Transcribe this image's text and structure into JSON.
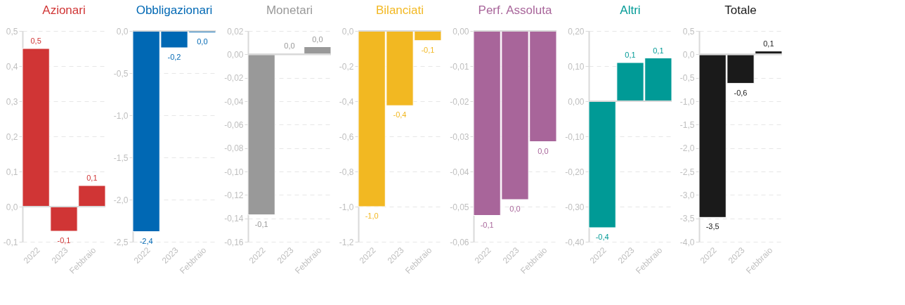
{
  "chart_data": [
    {
      "type": "bar",
      "title": "Azionari",
      "categories": [
        "2022",
        "2023",
        "Febbraio"
      ],
      "values": [
        0.45,
        -0.07,
        0.06
      ],
      "color": "#d03535",
      "value_labels": [
        "0,5",
        "-0,1",
        "0,1"
      ],
      "ylim": [
        -0.1,
        0.5
      ],
      "yticks": [
        {
          "value": -0.1,
          "label": "-0,1"
        },
        {
          "value": 0,
          "label": "0,0"
        },
        {
          "value": 0.1,
          "label": "0,1"
        },
        {
          "value": 0.2,
          "label": "0,2"
        },
        {
          "value": 0.3,
          "label": "0,3"
        },
        {
          "value": 0.4,
          "label": "0,4"
        },
        {
          "value": 0.5,
          "label": "0,5"
        }
      ],
      "grid": "y"
    },
    {
      "type": "bar",
      "title": "Obbligazionari",
      "categories": [
        "2022",
        "2023",
        "Febbraio"
      ],
      "values": [
        -2.38,
        -0.2,
        -0.02
      ],
      "color": "#0068b4",
      "value_labels": [
        "-2,4",
        "-0,2",
        "0,0"
      ],
      "ylim": [
        -2.5,
        0
      ],
      "yticks": [
        {
          "value": -2.5,
          "label": "-2,5"
        },
        {
          "value": -2,
          "label": "-2,0"
        },
        {
          "value": -1.5,
          "label": "-1,5"
        },
        {
          "value": -1,
          "label": "-1,0"
        },
        {
          "value": -0.5,
          "label": "-0,5"
        },
        {
          "value": 0,
          "label": "0,0"
        }
      ],
      "grid": "y"
    },
    {
      "type": "bar",
      "title": "Monetari",
      "categories": [
        "2022",
        "2023",
        "Febbraio"
      ],
      "values": [
        -0.137,
        0.0007,
        0.0065
      ],
      "color": "#999999",
      "value_labels": [
        "-0,1",
        "0,0",
        "0,0"
      ],
      "ylim": [
        -0.16,
        0.02
      ],
      "yticks": [
        {
          "value": -0.16,
          "label": "-0,16"
        },
        {
          "value": -0.14,
          "label": "-0,14"
        },
        {
          "value": -0.12,
          "label": "-0,12"
        },
        {
          "value": -0.1,
          "label": "-0,10"
        },
        {
          "value": -0.08,
          "label": "-0,08"
        },
        {
          "value": -0.06,
          "label": "-0,06"
        },
        {
          "value": -0.04,
          "label": "-0,04"
        },
        {
          "value": -0.02,
          "label": "-0,02"
        },
        {
          "value": 0,
          "label": "0,00"
        },
        {
          "value": 0.02,
          "label": "0,02"
        }
      ],
      "grid": "y"
    },
    {
      "type": "bar",
      "title": "Bilanciati",
      "categories": [
        "2022",
        "2023",
        "Febbraio"
      ],
      "values": [
        -1.0,
        -0.425,
        -0.055
      ],
      "color": "#f2b822",
      "value_labels": [
        "-1,0",
        "-0,4",
        "-0,1"
      ],
      "ylim": [
        -1.2,
        0
      ],
      "yticks": [
        {
          "value": -1.2,
          "label": "-1,2"
        },
        {
          "value": -1,
          "label": "-1,0"
        },
        {
          "value": -0.8,
          "label": "-0,8"
        },
        {
          "value": -0.6,
          "label": "-0,6"
        },
        {
          "value": -0.4,
          "label": "-0,4"
        },
        {
          "value": -0.2,
          "label": "-0,2"
        },
        {
          "value": 0,
          "label": "0,0"
        }
      ],
      "grid": "y"
    },
    {
      "type": "bar",
      "title": "Perf. Assoluta",
      "categories": [
        "2022",
        "2023",
        "Febbraio"
      ],
      "values": [
        -0.0525,
        -0.048,
        -0.0315
      ],
      "color": "#a8659a",
      "value_labels": [
        "-0,1",
        "0,0",
        "0,0"
      ],
      "ylim": [
        -0.06,
        0
      ],
      "yticks": [
        {
          "value": -0.06,
          "label": "-0,06"
        },
        {
          "value": -0.05,
          "label": "-0,05"
        },
        {
          "value": -0.04,
          "label": "-0,04"
        },
        {
          "value": -0.03,
          "label": "-0,03"
        },
        {
          "value": -0.02,
          "label": "-0,02"
        },
        {
          "value": -0.01,
          "label": "-0,01"
        },
        {
          "value": 0,
          "label": "0,00"
        }
      ],
      "grid": "y"
    },
    {
      "type": "bar",
      "title": "Altri",
      "categories": [
        "2022",
        "2023",
        "Febbraio"
      ],
      "values": [
        -0.36,
        0.11,
        0.123
      ],
      "color": "#009a96",
      "value_labels": [
        "-0,4",
        "0,1",
        "0,1"
      ],
      "ylim": [
        -0.4,
        0.2
      ],
      "yticks": [
        {
          "value": -0.4,
          "label": "-0,40"
        },
        {
          "value": -0.3,
          "label": "-0,30"
        },
        {
          "value": -0.2,
          "label": "-0,20"
        },
        {
          "value": -0.1,
          "label": "-0,10"
        },
        {
          "value": 0,
          "label": "0,00"
        },
        {
          "value": 0.1,
          "label": "0,10"
        },
        {
          "value": 0.2,
          "label": "0,20"
        }
      ],
      "grid": "y"
    },
    {
      "type": "bar",
      "title": "Totale",
      "categories": [
        "2022",
        "2023",
        "Febbraio"
      ],
      "values": [
        -3.48,
        -0.62,
        0.07
      ],
      "color": "#1a1a1a",
      "value_labels": [
        "-3,5",
        "-0,6",
        "0,1"
      ],
      "ylim": [
        -4,
        0.5
      ],
      "yticks": [
        {
          "value": -4,
          "label": "-4,0"
        },
        {
          "value": -3.5,
          "label": "-3,5"
        },
        {
          "value": -3,
          "label": "-3,0"
        },
        {
          "value": -2.5,
          "label": "-2,5"
        },
        {
          "value": -2,
          "label": "-2,0"
        },
        {
          "value": -1.5,
          "label": "-1,5"
        },
        {
          "value": -1,
          "label": "-1,0"
        },
        {
          "value": -0.5,
          "label": "-0,5"
        },
        {
          "value": 0,
          "label": "0,0"
        },
        {
          "value": 0.5,
          "label": "0,5"
        }
      ],
      "grid": "y"
    }
  ]
}
